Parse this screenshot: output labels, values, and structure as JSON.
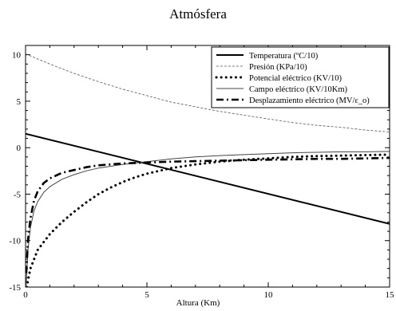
{
  "chart_data": {
    "type": "line",
    "title": "Atmósfera",
    "xlabel": "Altura (Km)",
    "ylabel": "",
    "xlim": [
      0,
      15
    ],
    "ylim": [
      -15,
      11
    ],
    "xticks": [
      0,
      5,
      10,
      15
    ],
    "yticks": [
      -15,
      -10,
      -5,
      0,
      5,
      10
    ],
    "grid": false,
    "legend_position": "top-right",
    "series": [
      {
        "name": "Temperatura (ºC/10)",
        "style": "solid-thick",
        "x": [
          0,
          15
        ],
        "y": [
          1.5,
          -8.2
        ]
      },
      {
        "name": "Presión (KPa/10)",
        "style": "dashed-thin",
        "x": [
          0,
          1,
          2,
          3,
          4,
          5,
          6,
          7,
          8,
          9,
          10,
          11,
          12,
          13,
          14,
          15
        ],
        "y": [
          10.1,
          9.0,
          8.0,
          7.1,
          6.3,
          5.6,
          4.9,
          4.4,
          3.9,
          3.5,
          3.1,
          2.7,
          2.4,
          2.2,
          1.9,
          1.7
        ]
      },
      {
        "name": "Potencial eléctrico (KV/10)",
        "style": "dotted",
        "x": [
          0.05,
          0.2,
          0.5,
          1,
          1.5,
          2,
          2.5,
          3,
          3.5,
          4,
          4.5,
          5,
          6,
          7,
          8,
          9,
          10,
          11,
          12,
          13,
          14,
          15
        ],
        "y": [
          -15,
          -13,
          -11,
          -9.3,
          -8.0,
          -6.9,
          -5.9,
          -5.0,
          -4.3,
          -3.7,
          -3.2,
          -2.8,
          -2.2,
          -1.8,
          -1.5,
          -1.3,
          -1.15,
          -1.0,
          -0.9,
          -0.85,
          -0.8,
          -0.75
        ]
      },
      {
        "name": "Campo eléctrico (KV/10Km)",
        "style": "solid-thin",
        "x": [
          0.02,
          0.1,
          0.2,
          0.35,
          0.5,
          0.75,
          1,
          1.5,
          2,
          2.5,
          3,
          4,
          5,
          6,
          7,
          8,
          9,
          10,
          11,
          12,
          13,
          14,
          15
        ],
        "y": [
          -15,
          -11.0,
          -8.6,
          -6.8,
          -5.8,
          -4.8,
          -4.2,
          -3.4,
          -2.9,
          -2.5,
          -2.2,
          -1.8,
          -1.5,
          -1.2,
          -1.0,
          -0.85,
          -0.75,
          -0.65,
          -0.55,
          -0.5,
          -0.45,
          -0.45,
          -0.4
        ]
      },
      {
        "name": "Desplazamiento eléctrico (MV/ε_o)",
        "style": "dash-dot-thick",
        "x": [
          0.03,
          0.1,
          0.2,
          0.35,
          0.5,
          0.75,
          1,
          1.5,
          2,
          2.5,
          3,
          4,
          5,
          6,
          7,
          8,
          9,
          10,
          11,
          12,
          13,
          14,
          15
        ],
        "y": [
          -13.5,
          -10.0,
          -7.6,
          -5.7,
          -4.7,
          -3.8,
          -3.3,
          -2.7,
          -2.4,
          -2.1,
          -1.9,
          -1.7,
          -1.6,
          -1.5,
          -1.45,
          -1.4,
          -1.35,
          -1.3,
          -1.25,
          -1.2,
          -1.2,
          -1.15,
          -1.1
        ]
      }
    ]
  }
}
